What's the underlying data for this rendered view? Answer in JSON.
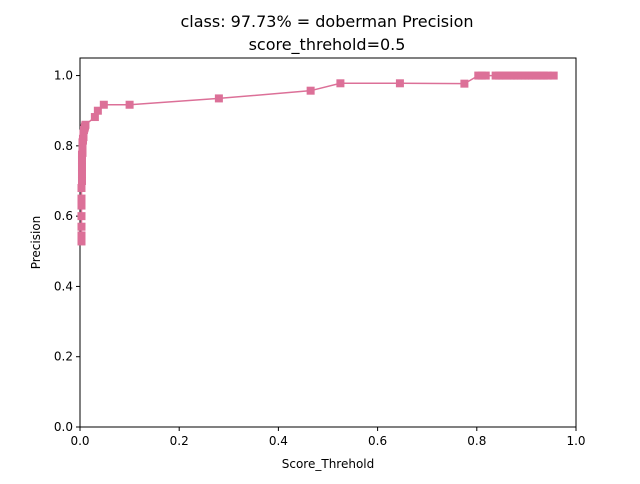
{
  "chart_data": {
    "type": "line",
    "title": "class: 97.73% = doberman Precision",
    "subtitle": "score_threhold=0.5",
    "xlabel": "Score_Threhold",
    "ylabel": "Precision",
    "xlim": [
      0.0,
      1.0
    ],
    "ylim": [
      0.0,
      1.05
    ],
    "x_ticks": [
      "0.0",
      "0.2",
      "0.4",
      "0.6",
      "0.8",
      "1.0"
    ],
    "y_ticks": [
      "0.0",
      "0.2",
      "0.4",
      "0.6",
      "0.8",
      "1.0"
    ],
    "grid": false,
    "legend": "none",
    "marker": "square",
    "color": "#dc7098",
    "series": [
      {
        "x": [
          0.003,
          0.003,
          0.003,
          0.003,
          0.003,
          0.003,
          0.003,
          0.004,
          0.004,
          0.004,
          0.004,
          0.004,
          0.005,
          0.005,
          0.005,
          0.005,
          0.006,
          0.006,
          0.007,
          0.007,
          0.008,
          0.009,
          0.01,
          0.011,
          0.03,
          0.036,
          0.048,
          0.1,
          0.28,
          0.465,
          0.525,
          0.645,
          0.775,
          0.803,
          0.81,
          0.818,
          0.838,
          0.845,
          0.852,
          0.86,
          0.868,
          0.875,
          0.882,
          0.89,
          0.897,
          0.905,
          0.912,
          0.92,
          0.928,
          0.935,
          0.943,
          0.955
        ],
        "y": [
          0.528,
          0.545,
          0.57,
          0.6,
          0.63,
          0.65,
          0.68,
          0.7,
          0.72,
          0.74,
          0.76,
          0.775,
          0.78,
          0.79,
          0.8,
          0.81,
          0.815,
          0.82,
          0.825,
          0.835,
          0.845,
          0.85,
          0.855,
          0.86,
          0.882,
          0.9,
          0.917,
          0.917,
          0.935,
          0.957,
          0.978,
          0.978,
          0.977,
          1.0,
          1.0,
          1.0,
          1.0,
          1.0,
          1.0,
          1.0,
          1.0,
          1.0,
          1.0,
          1.0,
          1.0,
          1.0,
          1.0,
          1.0,
          1.0,
          1.0,
          1.0,
          1.0
        ]
      }
    ]
  }
}
